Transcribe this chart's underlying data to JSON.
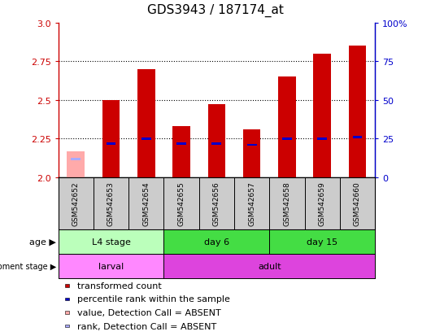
{
  "title": "GDS3943 / 187174_at",
  "samples": [
    "GSM542652",
    "GSM542653",
    "GSM542654",
    "GSM542655",
    "GSM542656",
    "GSM542657",
    "GSM542658",
    "GSM542659",
    "GSM542660"
  ],
  "transformed_count": [
    2.17,
    2.5,
    2.7,
    2.33,
    2.47,
    2.31,
    2.65,
    2.8,
    2.85
  ],
  "percentile_rank_pct": [
    12,
    22,
    25,
    22,
    22,
    21,
    25,
    25,
    26
  ],
  "absent_flags": [
    true,
    false,
    false,
    false,
    false,
    false,
    false,
    false,
    false
  ],
  "ylim_left": [
    2.0,
    3.0
  ],
  "ylim_right": [
    0,
    100
  ],
  "yticks_left": [
    2.0,
    2.25,
    2.5,
    2.75,
    3.0
  ],
  "yticks_right": [
    0,
    25,
    50,
    75,
    100
  ],
  "bar_width": 0.5,
  "red_color": "#cc0000",
  "pink_color": "#ffaaaa",
  "blue_color": "#0000cc",
  "lightblue_color": "#aaaaff",
  "age_groups": [
    {
      "label": "L4 stage",
      "start": 0,
      "end": 3,
      "color": "#bbffbb"
    },
    {
      "label": "day 6",
      "start": 3,
      "end": 6,
      "color": "#44dd44"
    },
    {
      "label": "day 15",
      "start": 6,
      "end": 9,
      "color": "#44dd44"
    }
  ],
  "dev_groups": [
    {
      "label": "larval",
      "start": 0,
      "end": 3,
      "color": "#ff88ff"
    },
    {
      "label": "adult",
      "start": 3,
      "end": 9,
      "color": "#dd44dd"
    }
  ],
  "bar_base": 2.0,
  "sample_box_color": "#cccccc",
  "title_fontsize": 11,
  "tick_fontsize": 8,
  "label_fontsize": 8,
  "legend_fontsize": 8
}
